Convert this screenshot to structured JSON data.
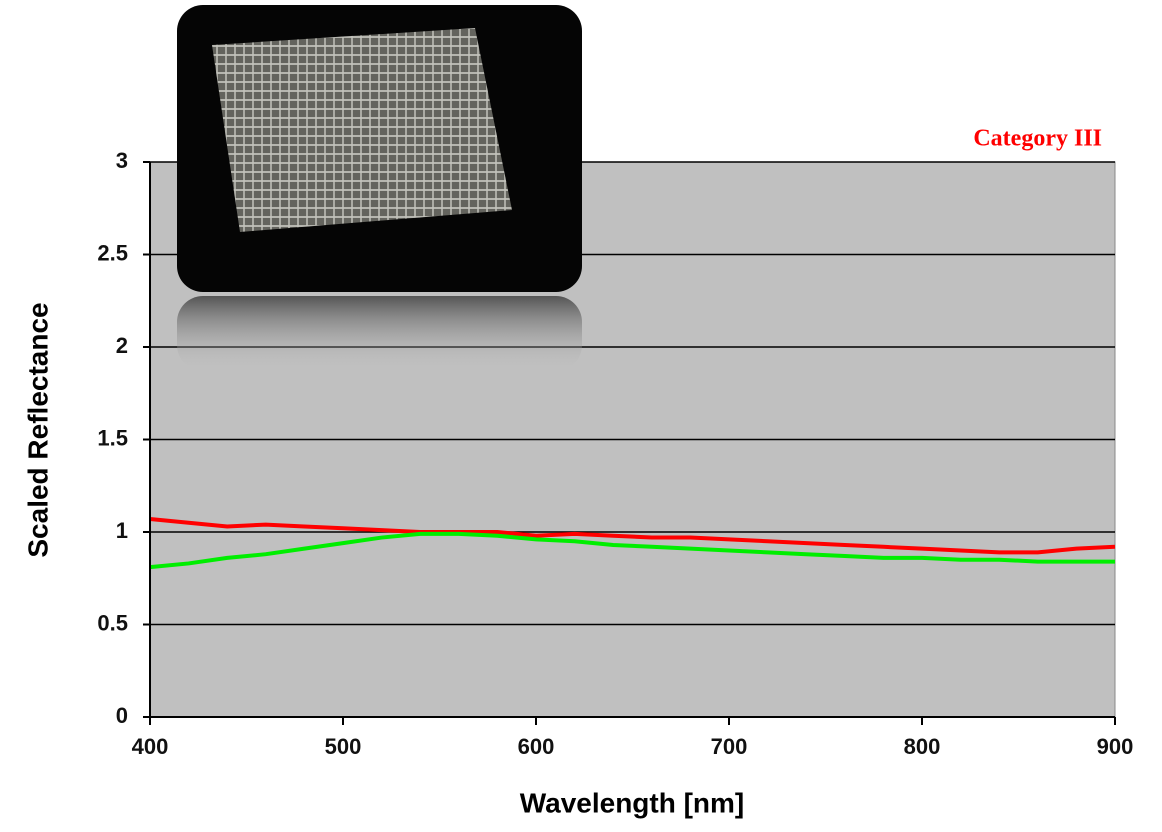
{
  "chart_data": {
    "type": "line",
    "annotation": "Category III",
    "x_label": "Wavelength [nm]",
    "y_label": "Scaled Reflectance",
    "x": [
      400,
      420,
      440,
      460,
      480,
      500,
      520,
      540,
      560,
      580,
      600,
      620,
      640,
      660,
      680,
      700,
      720,
      740,
      760,
      780,
      800,
      820,
      840,
      860,
      880,
      900
    ],
    "series": [
      {
        "color": "#ff0000",
        "values": [
          1.07,
          1.05,
          1.03,
          1.04,
          1.03,
          1.02,
          1.01,
          1.0,
          1.0,
          1.0,
          0.98,
          0.99,
          0.98,
          0.97,
          0.97,
          0.96,
          0.95,
          0.94,
          0.93,
          0.92,
          0.91,
          0.9,
          0.89,
          0.89,
          0.91,
          0.92
        ]
      },
      {
        "color": "#00ee00",
        "values": [
          0.81,
          0.83,
          0.86,
          0.88,
          0.91,
          0.94,
          0.97,
          0.99,
          0.99,
          0.98,
          0.96,
          0.95,
          0.93,
          0.92,
          0.91,
          0.9,
          0.89,
          0.88,
          0.87,
          0.86,
          0.86,
          0.85,
          0.85,
          0.84,
          0.84,
          0.84
        ]
      }
    ],
    "xlim": [
      400,
      900
    ],
    "xticks": [
      400,
      500,
      600,
      700,
      800,
      900
    ],
    "ylim": [
      0,
      3
    ],
    "yticks": [
      0,
      0.5,
      1,
      1.5,
      2,
      2.5,
      3
    ],
    "grid": true
  }
}
